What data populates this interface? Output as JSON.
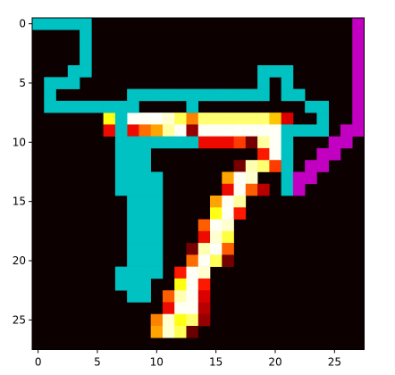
{
  "chart_data": {
    "type": "heatmap",
    "title": "",
    "xlabel": "",
    "ylabel": "",
    "xlim": [
      -0.5,
      27.5
    ],
    "ylim": [
      27.5,
      -0.5
    ],
    "x_ticks": [
      0,
      5,
      10,
      15,
      20,
      25
    ],
    "y_ticks": [
      0,
      5,
      10,
      15,
      20,
      25
    ],
    "x_tick_labels": [
      "0",
      "5",
      "10",
      "15",
      "20",
      "25"
    ],
    "y_tick_labels": [
      "0",
      "5",
      "10",
      "15",
      "20",
      "25"
    ],
    "grid": false,
    "colormap": "hot",
    "background_color": "#0d0000",
    "pixel_value_scale": [
      0,
      1
    ],
    "pixels": [
      {
        "r": 8,
        "c": 6,
        "v": 0.75
      },
      {
        "r": 8,
        "c": 7,
        "v": 0.82
      },
      {
        "r": 8,
        "c": 8,
        "v": 0.99
      },
      {
        "r": 8,
        "c": 9,
        "v": 0.99
      },
      {
        "r": 8,
        "c": 10,
        "v": 0.99
      },
      {
        "r": 8,
        "c": 11,
        "v": 0.95
      },
      {
        "r": 8,
        "c": 12,
        "v": 0.82
      },
      {
        "r": 8,
        "c": 13,
        "v": 0.55
      },
      {
        "r": 8,
        "c": 14,
        "v": 0.85
      },
      {
        "r": 8,
        "c": 15,
        "v": 0.85
      },
      {
        "r": 8,
        "c": 16,
        "v": 0.85
      },
      {
        "r": 8,
        "c": 17,
        "v": 0.85
      },
      {
        "r": 8,
        "c": 18,
        "v": 0.85
      },
      {
        "r": 8,
        "c": 19,
        "v": 0.85
      },
      {
        "r": 8,
        "c": 20,
        "v": 0.65
      },
      {
        "r": 8,
        "c": 21,
        "v": 0.35
      },
      {
        "r": 9,
        "c": 6,
        "v": 0.38
      },
      {
        "r": 9,
        "c": 7,
        "v": 0.38
      },
      {
        "r": 9,
        "c": 8,
        "v": 0.38
      },
      {
        "r": 9,
        "c": 9,
        "v": 0.52
      },
      {
        "r": 9,
        "c": 10,
        "v": 0.6
      },
      {
        "r": 9,
        "c": 11,
        "v": 0.9
      },
      {
        "r": 9,
        "c": 12,
        "v": 0.99
      },
      {
        "r": 9,
        "c": 13,
        "v": 0.25
      },
      {
        "r": 9,
        "c": 14,
        "v": 0.99
      },
      {
        "r": 9,
        "c": 15,
        "v": 0.99
      },
      {
        "r": 9,
        "c": 16,
        "v": 0.99
      },
      {
        "r": 9,
        "c": 17,
        "v": 0.99
      },
      {
        "r": 9,
        "c": 18,
        "v": 0.99
      },
      {
        "r": 9,
        "c": 19,
        "v": 0.99
      },
      {
        "r": 9,
        "c": 20,
        "v": 0.99
      },
      {
        "r": 10,
        "c": 14,
        "v": 0.38
      },
      {
        "r": 10,
        "c": 15,
        "v": 0.38
      },
      {
        "r": 10,
        "c": 16,
        "v": 0.38
      },
      {
        "r": 10,
        "c": 17,
        "v": 0.45
      },
      {
        "r": 10,
        "c": 18,
        "v": 0.2
      },
      {
        "r": 10,
        "c": 19,
        "v": 0.9
      },
      {
        "r": 10,
        "c": 20,
        "v": 0.99
      },
      {
        "r": 11,
        "c": 19,
        "v": 0.4
      },
      {
        "r": 11,
        "c": 20,
        "v": 0.99
      },
      {
        "r": 12,
        "c": 17,
        "v": 0.2
      },
      {
        "r": 12,
        "c": 18,
        "v": 0.92
      },
      {
        "r": 12,
        "c": 19,
        "v": 0.85
      },
      {
        "r": 12,
        "c": 20,
        "v": 0.45
      },
      {
        "r": 13,
        "c": 16,
        "v": 0.6
      },
      {
        "r": 13,
        "c": 17,
        "v": 0.99
      },
      {
        "r": 13,
        "c": 18,
        "v": 0.95
      },
      {
        "r": 14,
        "c": 16,
        "v": 0.38
      },
      {
        "r": 14,
        "c": 17,
        "v": 0.99
      },
      {
        "r": 14,
        "c": 18,
        "v": 0.5
      },
      {
        "r": 14,
        "c": 19,
        "v": 0.3
      },
      {
        "r": 15,
        "c": 15,
        "v": 0.6
      },
      {
        "r": 15,
        "c": 16,
        "v": 0.99
      },
      {
        "r": 15,
        "c": 17,
        "v": 0.9
      },
      {
        "r": 16,
        "c": 15,
        "v": 0.75
      },
      {
        "r": 16,
        "c": 16,
        "v": 0.99
      },
      {
        "r": 16,
        "c": 17,
        "v": 0.4
      },
      {
        "r": 17,
        "c": 14,
        "v": 0.5
      },
      {
        "r": 17,
        "c": 15,
        "v": 0.99
      },
      {
        "r": 17,
        "c": 16,
        "v": 0.95
      },
      {
        "r": 18,
        "c": 14,
        "v": 0.38
      },
      {
        "r": 18,
        "c": 15,
        "v": 0.95
      },
      {
        "r": 18,
        "c": 16,
        "v": 0.8
      },
      {
        "r": 19,
        "c": 13,
        "v": 0.2
      },
      {
        "r": 19,
        "c": 14,
        "v": 0.92
      },
      {
        "r": 19,
        "c": 15,
        "v": 0.99
      },
      {
        "r": 19,
        "c": 16,
        "v": 0.5
      },
      {
        "r": 20,
        "c": 13,
        "v": 0.52
      },
      {
        "r": 20,
        "c": 14,
        "v": 0.99
      },
      {
        "r": 20,
        "c": 15,
        "v": 0.82
      },
      {
        "r": 20,
        "c": 16,
        "v": 0.2
      },
      {
        "r": 21,
        "c": 12,
        "v": 0.4
      },
      {
        "r": 21,
        "c": 13,
        "v": 0.99
      },
      {
        "r": 21,
        "c": 14,
        "v": 0.95
      },
      {
        "r": 22,
        "c": 12,
        "v": 0.75
      },
      {
        "r": 22,
        "c": 13,
        "v": 0.99
      },
      {
        "r": 22,
        "c": 14,
        "v": 0.4
      },
      {
        "r": 23,
        "c": 11,
        "v": 0.5
      },
      {
        "r": 23,
        "c": 12,
        "v": 0.92
      },
      {
        "r": 23,
        "c": 13,
        "v": 0.99
      },
      {
        "r": 23,
        "c": 14,
        "v": 0.35
      },
      {
        "r": 24,
        "c": 11,
        "v": 0.38
      },
      {
        "r": 24,
        "c": 12,
        "v": 0.99
      },
      {
        "r": 24,
        "c": 13,
        "v": 0.99
      },
      {
        "r": 24,
        "c": 14,
        "v": 0.3
      },
      {
        "r": 25,
        "c": 10,
        "v": 0.55
      },
      {
        "r": 25,
        "c": 11,
        "v": 0.95
      },
      {
        "r": 25,
        "c": 12,
        "v": 0.75
      },
      {
        "r": 25,
        "c": 13,
        "v": 0.85
      },
      {
        "r": 25,
        "c": 14,
        "v": 0.25
      },
      {
        "r": 26,
        "c": 10,
        "v": 0.6
      },
      {
        "r": 26,
        "c": 11,
        "v": 0.95
      },
      {
        "r": 26,
        "c": 12,
        "v": 0.82
      },
      {
        "r": 26,
        "c": 13,
        "v": 0.18
      }
    ],
    "overlays": [
      {
        "color": "#00c2c2",
        "cells": [
          [
            0,
            0
          ],
          [
            0,
            1
          ],
          [
            0,
            2
          ],
          [
            0,
            3
          ],
          [
            0,
            4
          ],
          [
            1,
            4
          ],
          [
            2,
            4
          ],
          [
            3,
            4
          ],
          [
            4,
            3
          ],
          [
            4,
            4
          ],
          [
            5,
            1
          ],
          [
            5,
            2
          ],
          [
            5,
            3
          ],
          [
            6,
            1
          ],
          [
            7,
            1
          ],
          [
            7,
            2
          ],
          [
            7,
            3
          ],
          [
            7,
            4
          ],
          [
            7,
            5
          ],
          [
            7,
            6
          ],
          [
            6,
            8
          ],
          [
            6,
            9
          ],
          [
            6,
            10
          ],
          [
            6,
            11
          ],
          [
            6,
            12
          ],
          [
            6,
            13
          ],
          [
            6,
            14
          ],
          [
            6,
            15
          ],
          [
            6,
            16
          ],
          [
            6,
            17
          ],
          [
            6,
            18
          ],
          [
            6,
            19
          ],
          [
            4,
            19
          ],
          [
            4,
            20
          ],
          [
            4,
            21
          ],
          [
            5,
            19
          ],
          [
            5,
            21
          ],
          [
            6,
            21
          ],
          [
            6,
            22
          ],
          [
            7,
            23
          ],
          [
            7,
            24
          ],
          [
            8,
            24
          ],
          [
            9,
            24
          ],
          [
            9,
            21
          ],
          [
            9,
            22
          ],
          [
            9,
            23
          ],
          [
            10,
            21
          ],
          [
            11,
            21
          ],
          [
            12,
            21
          ],
          [
            13,
            21
          ],
          [
            14,
            21
          ],
          [
            7,
            7
          ],
          [
            7,
            8
          ],
          [
            7,
            13
          ],
          [
            8,
            7
          ],
          [
            9,
            7
          ],
          [
            10,
            7
          ],
          [
            10,
            8
          ],
          [
            10,
            9
          ],
          [
            10,
            10
          ],
          [
            10,
            11
          ],
          [
            10,
            12
          ],
          [
            10,
            13
          ],
          [
            11,
            7
          ],
          [
            11,
            8
          ],
          [
            11,
            9
          ],
          [
            12,
            7
          ],
          [
            12,
            8
          ],
          [
            12,
            9
          ],
          [
            13,
            7
          ],
          [
            13,
            8
          ],
          [
            13,
            9
          ],
          [
            13,
            10
          ],
          [
            14,
            7
          ],
          [
            14,
            8
          ],
          [
            14,
            9
          ],
          [
            14,
            10
          ],
          [
            15,
            8
          ],
          [
            15,
            9
          ],
          [
            15,
            10
          ],
          [
            16,
            8
          ],
          [
            16,
            9
          ],
          [
            16,
            10
          ],
          [
            17,
            8
          ],
          [
            17,
            9
          ],
          [
            17,
            10
          ],
          [
            18,
            8
          ],
          [
            18,
            9
          ],
          [
            18,
            10
          ],
          [
            19,
            8
          ],
          [
            19,
            9
          ],
          [
            19,
            10
          ],
          [
            20,
            8
          ],
          [
            20,
            9
          ],
          [
            20,
            10
          ],
          [
            21,
            7
          ],
          [
            21,
            8
          ],
          [
            21,
            9
          ],
          [
            21,
            10
          ],
          [
            22,
            7
          ],
          [
            22,
            8
          ],
          [
            22,
            9
          ],
          [
            23,
            8
          ],
          [
            23,
            9
          ]
        ]
      },
      {
        "color": "#c200c2",
        "cells": [
          [
            0,
            27
          ],
          [
            1,
            27
          ],
          [
            2,
            27
          ],
          [
            3,
            27
          ],
          [
            4,
            27
          ],
          [
            5,
            27
          ],
          [
            6,
            27
          ],
          [
            7,
            27
          ],
          [
            8,
            27
          ],
          [
            9,
            26
          ],
          [
            9,
            27
          ],
          [
            10,
            25
          ],
          [
            10,
            26
          ],
          [
            11,
            24
          ],
          [
            11,
            25
          ],
          [
            12,
            23
          ],
          [
            12,
            24
          ],
          [
            13,
            22
          ],
          [
            13,
            23
          ],
          [
            14,
            22
          ]
        ]
      }
    ]
  }
}
